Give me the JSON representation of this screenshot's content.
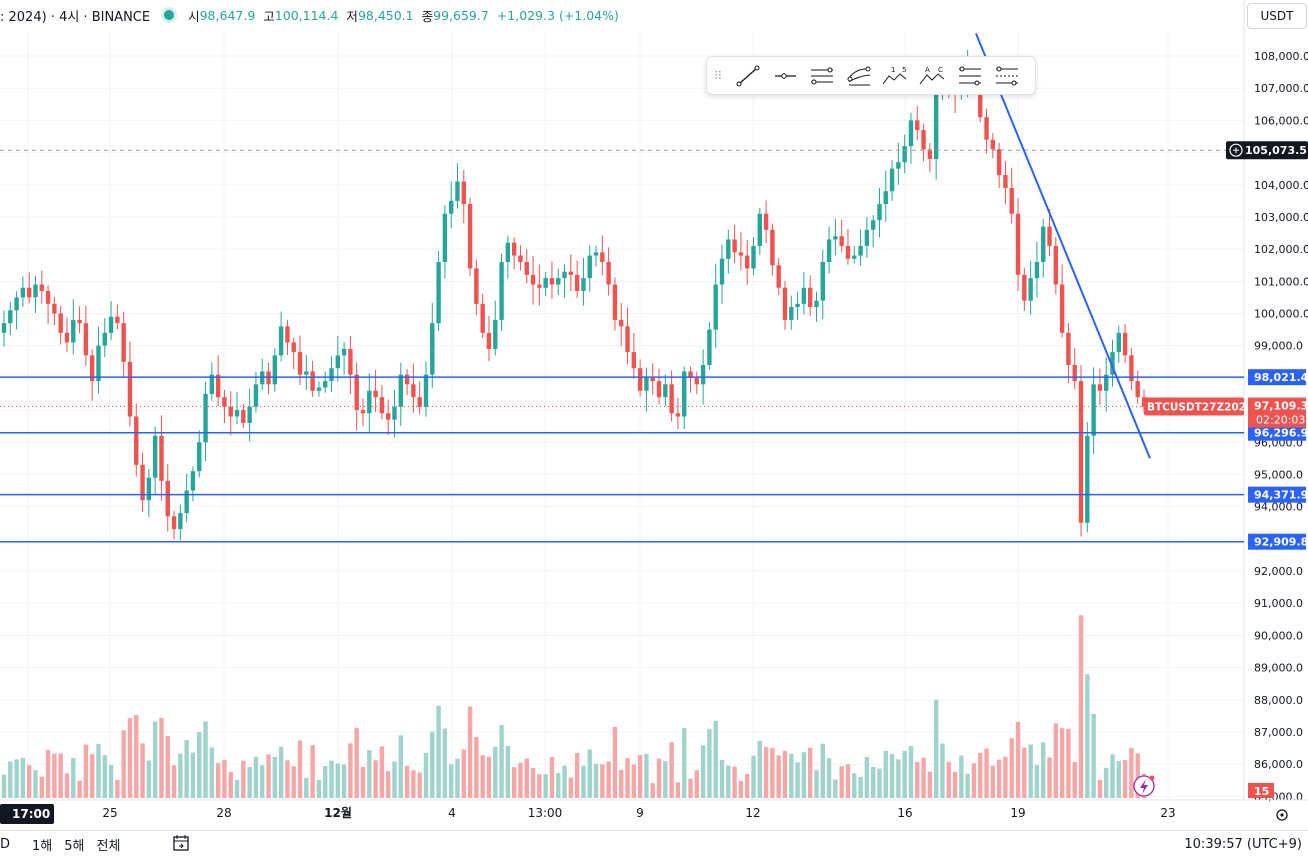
{
  "header": {
    "symbol_title": ": 2024) · 4시 · BINANCE",
    "open_label": "시",
    "open_value": "98,647.9",
    "high_label": "고",
    "high_value": "100,114.4",
    "low_label": "저",
    "low_value": "98,450.1",
    "close_label": "종",
    "close_value": "99,659.7",
    "change": "+1,029.3 (+1.04%)"
  },
  "currency": "USDT",
  "toolbar": [
    "trend-line-tool",
    "horizontal-ray-tool",
    "parallel-channel-tool",
    "regression-trend-tool",
    "elliott-impulse-tool",
    "abcd-pattern-tool",
    "fib-retracement-tool",
    "fib-extension-tool"
  ],
  "price_axis": {
    "ticks": [
      "108,000.0",
      "107,000.0",
      "106,000.0",
      "105,000.0",
      "104,000.0",
      "103,000.0",
      "102,000.0",
      "101,000.0",
      "100,000.0",
      "99,000.0",
      "98,000.0",
      "97,000.0",
      "96,000.0",
      "95,000.0",
      "94,000.0",
      "93,000.0",
      "92,000.0",
      "91,000.0",
      "90,000.0",
      "89,000.0",
      "88,000.0",
      "87,000.0",
      "86,000.0",
      "85,000.0"
    ],
    "crosshair_price": "105,073.5",
    "hline_labels": [
      "98,021.4",
      "96,296.9",
      "94,371.9",
      "92,909.8"
    ],
    "current_price": "97,109.3",
    "countdown": "02:20:03",
    "symbol_badge": "BTCUSDT27Z2024",
    "volume_badge": "15"
  },
  "time_axis": {
    "labels": [
      "17:00",
      "25",
      "28",
      "12월",
      "4",
      "13:00",
      "9",
      "12",
      "16",
      "19",
      "23"
    ]
  },
  "bottom_bar": {
    "ranges": [
      "D",
      "1해",
      "5해",
      "전체"
    ],
    "clock": "10:39:57 (UTC+9)"
  },
  "colors": {
    "up": "#26a69a",
    "down": "#ef5350",
    "hline": "#2962ff",
    "trend": "#2962ff",
    "vol_up": "#9fd3cc",
    "vol_down": "#f4a7a6"
  },
  "chart_data": {
    "type": "candlestick",
    "y_unit": "USDT",
    "ylim": [
      85000,
      108800
    ],
    "horizontal_lines": [
      98021.4,
      96296.9,
      94371.9,
      92909.8
    ],
    "crosshair_price": 105073.5,
    "current_price": 97109.3,
    "trend_line": {
      "from": [
        0.0,
        108700
      ],
      "to": [
        1.0,
        95500
      ]
    },
    "closes": [
      99700,
      100100,
      100500,
      100800,
      100500,
      100900,
      100700,
      100300,
      100000,
      99400,
      99100,
      99800,
      99700,
      98700,
      97900,
      99000,
      99400,
      99900,
      99700,
      98500,
      96800,
      95300,
      94200,
      94900,
      96200,
      94800,
      93700,
      93300,
      93800,
      94500,
      95100,
      96000,
      97500,
      98100,
      97400,
      97100,
      96800,
      97000,
      96600,
      97100,
      97800,
      98200,
      97800,
      98700,
      99600,
      99100,
      98800,
      98100,
      98200,
      97600,
      97700,
      97900,
      98300,
      98700,
      98900,
      98100,
      97000,
      96900,
      97600,
      97400,
      96900,
      96700,
      97100,
      98100,
      97800,
      97400,
      97100,
      98100,
      99700,
      101600,
      103100,
      103500,
      104100,
      103400,
      101400,
      100300,
      99400,
      98900,
      99800,
      101600,
      102200,
      101800,
      101600,
      101200,
      100900,
      100800,
      101100,
      100900,
      101100,
      101300,
      101200,
      100700,
      101100,
      101800,
      101900,
      101600,
      100900,
      99800,
      99600,
      98800,
      98300,
      97600,
      98000,
      97900,
      97400,
      97800,
      96900,
      96800,
      98200,
      98000,
      97800,
      98400,
      99500,
      100900,
      101700,
      102300,
      101900,
      101800,
      101400,
      102100,
      103100,
      102600,
      101500,
      100800,
      99800,
      100200,
      100300,
      100800,
      100200,
      100400,
      101600,
      102300,
      102400,
      102100,
      101700,
      101800,
      102100,
      102600,
      102900,
      103400,
      103800,
      104500,
      104700,
      105200,
      106000,
      105700,
      105100,
      104800,
      106900,
      107500,
      107200,
      106800,
      107200,
      107600,
      107100,
      106100,
      105400,
      105100,
      104300,
      103900,
      103100,
      101200,
      100400,
      101100,
      101600,
      102700,
      102100,
      100900,
      99400,
      98400,
      97900,
      93500,
      96200,
      97800,
      97600,
      98100,
      98800,
      99400,
      98700,
      97900,
      97400,
      97100
    ]
  }
}
